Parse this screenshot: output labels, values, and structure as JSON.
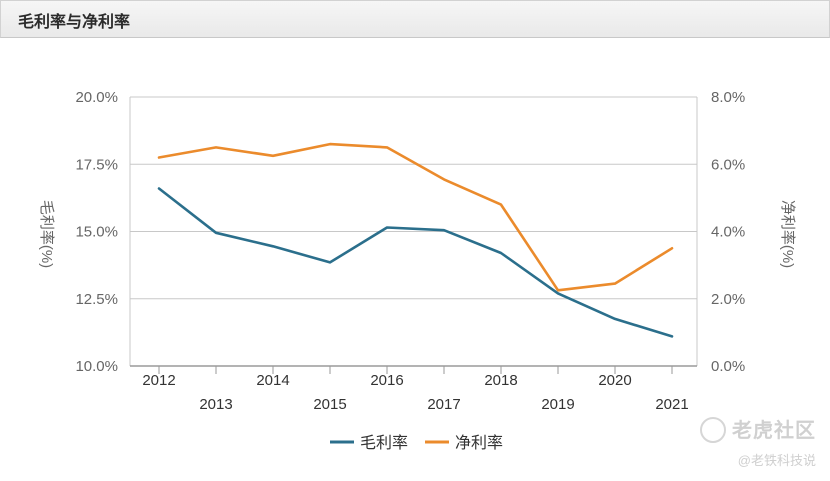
{
  "panel": {
    "title": "毛利率与净利率"
  },
  "chart_data": {
    "type": "line",
    "x": [
      "2012",
      "2013",
      "2014",
      "2015",
      "2016",
      "2017",
      "2018",
      "2019",
      "2020",
      "2021"
    ],
    "series": [
      {
        "name": "毛利率",
        "axis": "left",
        "color": "#2b6f8c",
        "values": [
          16.6,
          14.95,
          14.45,
          13.85,
          15.15,
          15.05,
          14.2,
          12.7,
          11.75,
          11.1
        ]
      },
      {
        "name": "净利率",
        "axis": "right",
        "color": "#eb8b2c",
        "values": [
          6.2,
          6.5,
          6.25,
          6.6,
          6.5,
          5.55,
          4.8,
          2.25,
          2.45,
          3.5
        ]
      }
    ],
    "y_left": {
      "label": "毛利率(%)",
      "min": 10,
      "max": 20,
      "ticks": [
        10,
        12.5,
        15,
        17.5,
        20
      ],
      "tick_labels": [
        "10.0%",
        "12.5%",
        "15.0%",
        "17.5%",
        "20.0%"
      ]
    },
    "y_right": {
      "label": "净利率(%)",
      "min": 0,
      "max": 8,
      "ticks": [
        0,
        2,
        4,
        6,
        8
      ],
      "tick_labels": [
        "0.0%",
        "2.0%",
        "4.0%",
        "6.0%",
        "8.0%"
      ]
    },
    "legend_position": "bottom-center",
    "grid": true
  },
  "watermark": {
    "brand": "老虎社区",
    "author": "@老铁科技说"
  }
}
